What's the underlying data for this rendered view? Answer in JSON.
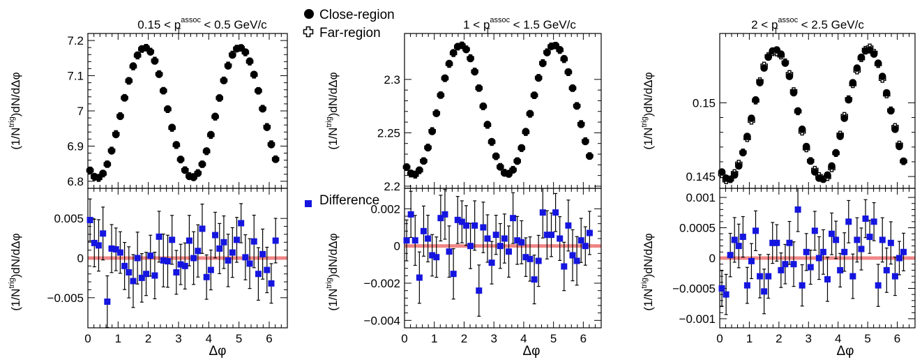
{
  "legend": {
    "close_label": "Close-region",
    "far_label": "Far-region",
    "diff_label": "Difference"
  },
  "colors": {
    "close": "#000000",
    "far": "#ffffff",
    "difference": "#1515e0",
    "reference_line": "#f08080"
  },
  "chart_data": [
    {
      "type": "scatter",
      "title": "0.15 < p_T^assoc < 0.5 GeV/c",
      "title_parts": {
        "left": "0.15 < p",
        "sup": "assoc",
        "sub": "T",
        "right": " < 0.5 GeV/c"
      },
      "xlabel": "Δφ",
      "ylabel_parts": {
        "a": "(1/N",
        "sup": "trig",
        "b": ")dN/dΔφ"
      },
      "xlim": [
        0,
        6.6
      ],
      "xticks": [
        "0",
        "1",
        "2",
        "3",
        "4",
        "5",
        "6"
      ],
      "top": {
        "ylim": [
          6.78,
          7.22
        ],
        "yticks": [
          {
            "v": 6.8,
            "label": "6.8"
          },
          {
            "v": 6.9,
            "label": "6.9"
          },
          {
            "v": 7.0,
            "label": "7"
          },
          {
            "v": 7.1,
            "label": "7.1"
          },
          {
            "v": 7.2,
            "label": "7.2"
          }
        ],
        "model": {
          "mean": 6.995,
          "amp": 0.185,
          "phase": 1.885,
          "freq": 2
        },
        "series": [
          {
            "name": "Close-region",
            "marker": "filled-circle"
          },
          {
            "name": "Far-region",
            "marker": "open-cross"
          }
        ]
      },
      "bottom": {
        "ylim": [
          -0.0088,
          0.0088
        ],
        "yticks": [
          {
            "v": -0.005,
            "label": "−0.005"
          },
          {
            "v": 0,
            "label": "0"
          },
          {
            "v": 0.005,
            "label": "0.005"
          }
        ],
        "err": 0.0029,
        "series": [
          {
            "name": "Difference",
            "marker": "filled-square",
            "values": [
              0.0048,
              0.0019,
              0.0016,
              0.0031,
              -0.0055,
              0.0012,
              0.0011,
              0.0007,
              -0.001,
              -0.0018,
              -0.0029,
              0.0,
              -0.0025,
              -0.002,
              0.0003,
              -0.0022,
              0.0027,
              -0.0003,
              -0.0004,
              0.0023,
              -0.0018,
              -0.0008,
              -0.001,
              0.0022,
              0.0,
              0.0009,
              0.0037,
              -0.0024,
              -0.0015,
              0.0029,
              0.0012,
              0.002,
              -0.0003,
              0.0007,
              0.0023,
              0.0044,
              0.0001,
              -0.0007,
              0.0021,
              -0.002,
              0.0005,
              -0.0015,
              -0.0032,
              0.0022
            ]
          }
        ]
      }
    },
    {
      "type": "scatter",
      "title": "1 < p_T^assoc < 1.5 GeV/c",
      "title_parts": {
        "left": "1 < p",
        "sup": "assoc",
        "sub": "T",
        "right": " < 1.5 GeV/c"
      },
      "xlabel": "Δφ",
      "ylabel_parts": {
        "a": "(1/N",
        "sup": "trig",
        "b": ")dN/dΔφ"
      },
      "xlim": [
        0,
        6.6
      ],
      "xticks": [
        "0",
        "1",
        "2",
        "3",
        "4",
        "5",
        "6"
      ],
      "top": {
        "ylim": [
          2.198,
          2.343
        ],
        "yticks": [
          {
            "v": 2.2,
            "label": "2.2"
          },
          {
            "v": 2.25,
            "label": "2.25"
          },
          {
            "v": 2.3,
            "label": "2.3"
          }
        ],
        "model": {
          "mean": 2.2715,
          "amp": 0.0605,
          "phase": 1.885,
          "freq": 2
        },
        "series": [
          {
            "name": "Close-region",
            "marker": "filled-circle"
          },
          {
            "name": "Far-region",
            "marker": "open-cross"
          }
        ]
      },
      "bottom": {
        "ylim": [
          -0.0044,
          0.0031
        ],
        "yticks": [
          {
            "v": -0.004,
            "label": "−0.004"
          },
          {
            "v": -0.002,
            "label": "−0.002"
          },
          {
            "v": 0,
            "label": "0"
          },
          {
            "v": 0.002,
            "label": "0.002"
          }
        ],
        "err": 0.0012,
        "series": [
          {
            "name": "Difference",
            "marker": "filled-square",
            "values": [
              0.0003,
              0.0017,
              0.0003,
              -0.0017,
              0.0008,
              0.0004,
              -0.0005,
              -0.0006,
              0.0015,
              0.0017,
              -0.0003,
              -0.0015,
              0.0014,
              0.0013,
              0.0011,
              0.0,
              0.0011,
              -0.0024,
              0.001,
              0.0004,
              -0.0009,
              0.0006,
              0.0,
              0.0004,
              -0.0003,
              0.0015,
              0.0003,
              0.0002,
              -0.0006,
              -0.0007,
              -0.0018,
              -0.0008,
              0.0018,
              0.0006,
              0.0006,
              0.0018,
              0.0004,
              -0.0011,
              0.0011,
              -0.0005,
              -0.0008,
              0.0003,
              0.0,
              0.0007
            ]
          }
        ]
      }
    },
    {
      "type": "scatter",
      "title": "2 < p_T^assoc < 2.5 GeV/c",
      "title_parts": {
        "left": "2 < p",
        "sup": "assoc",
        "sub": "T",
        "right": " < 2.5 GeV/c"
      },
      "xlabel": "Δφ",
      "ylabel_parts": {
        "a": "(1/N",
        "sup": "trig",
        "b": ")dN/dΔφ"
      },
      "xlim": [
        0,
        6.6
      ],
      "xticks": [
        "0",
        "1",
        "2",
        "3",
        "4",
        "5",
        "6"
      ],
      "top": {
        "ylim": [
          0.1442,
          0.1547
        ],
        "yticks": [
          {
            "v": 0.145,
            "label": "0.145"
          },
          {
            "v": 0.15,
            "label": "0.15"
          }
        ],
        "model": {
          "mean": 0.1492,
          "amp": 0.0044,
          "phase": 1.885,
          "freq": 2
        },
        "series": [
          {
            "name": "Close-region",
            "marker": "filled-circle"
          },
          {
            "name": "Far-region",
            "marker": "open-cross"
          }
        ]
      },
      "bottom": {
        "ylim": [
          -0.00115,
          0.00115
        ],
        "yticks": [
          {
            "v": -0.001,
            "label": "−0.001"
          },
          {
            "v": -0.0005,
            "label": "−0.0005"
          },
          {
            "v": 0,
            "label": "0"
          },
          {
            "v": 0.0005,
            "label": "0.0005"
          },
          {
            "v": 0.001,
            "label": "0.001"
          }
        ],
        "err": 0.00032,
        "series": [
          {
            "name": "Difference",
            "marker": "filled-square",
            "values": [
              -0.0005,
              -0.0006,
              5e-05,
              0.0003,
              0.0002,
              0.00035,
              -0.00045,
              -5e-05,
              0.00045,
              -0.0003,
              -0.00055,
              -0.0003,
              0.00025,
              0.00025,
              -0.0002,
              -0.0001,
              0.00025,
              -0.0001,
              0.0008,
              -0.00045,
              0.0001,
              -0.00015,
              0.00045,
              0.0,
              0.0001,
              -0.00035,
              0.0004,
              0.0003,
              -0.0002,
              0.0001,
              0.0006,
              -0.0003,
              0.0003,
              0.00015,
              0.00065,
              0.00035,
              0.0006,
              -0.00045,
              0.0003,
              -0.0002,
              0.00025,
              -0.0003,
              0.0,
              0.0001
            ]
          }
        ]
      }
    }
  ]
}
